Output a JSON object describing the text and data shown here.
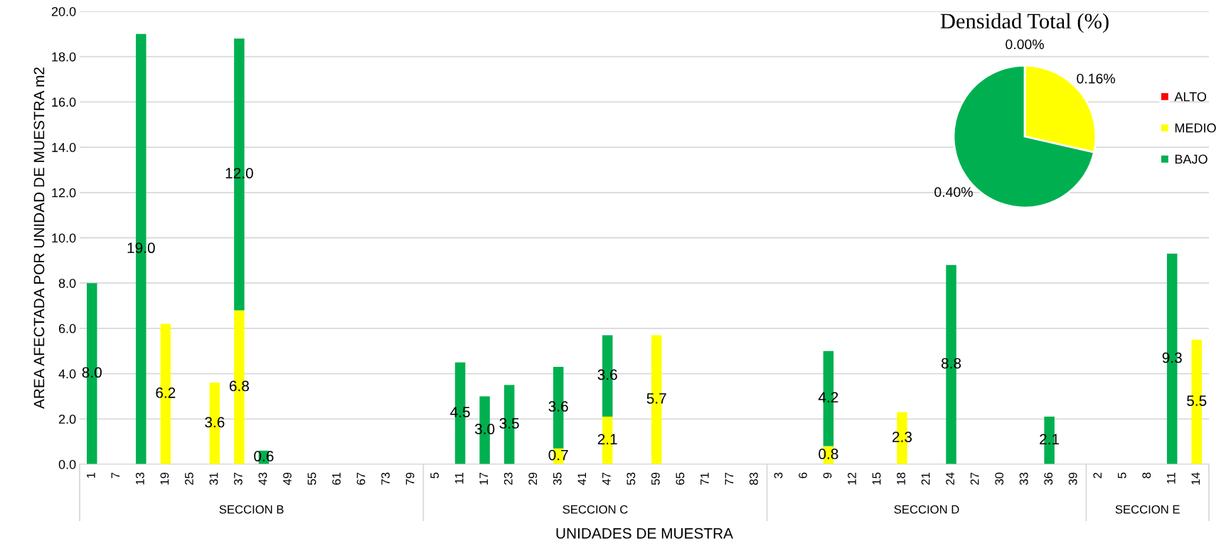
{
  "chart_data": [
    {
      "type": "bar",
      "stacked": true,
      "xlabel": "UNIDADES DE MUESTRA",
      "ylabel": "AREA AFECTADA POR UNIDAD DE MUESTRA m2",
      "categories": [
        "1",
        "7",
        "13",
        "19",
        "25",
        "31",
        "37",
        "43",
        "49",
        "55",
        "61",
        "67",
        "73",
        "79",
        "5",
        "11",
        "17",
        "23",
        "29",
        "35",
        "41",
        "47",
        "53",
        "59",
        "65",
        "71",
        "77",
        "83",
        "3",
        "6",
        "9",
        "12",
        "15",
        "18",
        "21",
        "24",
        "27",
        "30",
        "33",
        "36",
        "39",
        "2",
        "5",
        "8",
        "11",
        "14"
      ],
      "series": [
        {
          "color": "#ffff00",
          "values": [
            null,
            null,
            null,
            6.2,
            null,
            3.6,
            6.8,
            null,
            null,
            null,
            null,
            null,
            null,
            null,
            null,
            null,
            null,
            null,
            null,
            0.7,
            null,
            2.1,
            null,
            5.7,
            null,
            null,
            null,
            null,
            null,
            null,
            0.8,
            null,
            null,
            2.3,
            null,
            null,
            null,
            null,
            null,
            null,
            null,
            null,
            null,
            null,
            null,
            5.5
          ],
          "value_labels": [
            null,
            null,
            null,
            "6.2",
            null,
            "3.6",
            "6.8",
            null,
            null,
            null,
            null,
            null,
            null,
            null,
            null,
            null,
            null,
            null,
            null,
            "0.7",
            null,
            "2.1",
            null,
            "5.7",
            null,
            null,
            null,
            null,
            null,
            null,
            "0.8",
            null,
            null,
            "2.3",
            null,
            null,
            null,
            null,
            null,
            null,
            null,
            null,
            null,
            null,
            null,
            "5.5"
          ]
        },
        {
          "color": "#00b050",
          "values": [
            8.0,
            null,
            19.0,
            null,
            null,
            null,
            12.0,
            0.6,
            null,
            null,
            null,
            null,
            null,
            null,
            null,
            4.5,
            3.0,
            3.5,
            null,
            3.6,
            null,
            3.6,
            null,
            null,
            null,
            null,
            null,
            null,
            null,
            null,
            4.2,
            null,
            null,
            null,
            null,
            8.8,
            null,
            null,
            null,
            2.1,
            null,
            null,
            null,
            null,
            9.3,
            null
          ],
          "value_labels": [
            "8.0",
            null,
            "19.0",
            null,
            null,
            null,
            "12.0",
            "0.6",
            null,
            null,
            null,
            null,
            null,
            null,
            null,
            "4.5",
            "3.0",
            "3.5",
            null,
            "3.6",
            null,
            "3.6",
            null,
            null,
            null,
            null,
            null,
            null,
            null,
            null,
            "4.2",
            null,
            null,
            null,
            null,
            "8.8",
            null,
            null,
            null,
            "2.1",
            null,
            null,
            null,
            null,
            "9.3",
            null
          ]
        }
      ],
      "grid": "y",
      "ylim": [
        0,
        20
      ],
      "yticks": [
        {
          "value": 0,
          "label": "0.0"
        },
        {
          "value": 2,
          "label": "2.0"
        },
        {
          "value": 4,
          "label": "4.0"
        },
        {
          "value": 6,
          "label": "6.0"
        },
        {
          "value": 8,
          "label": "8.0"
        },
        {
          "value": 10,
          "label": "10.0"
        },
        {
          "value": 12,
          "label": "12.0"
        },
        {
          "value": 14,
          "label": "14.0"
        },
        {
          "value": 16,
          "label": "16.0"
        },
        {
          "value": 18,
          "label": "18.0"
        },
        {
          "value": 20,
          "label": "20.0"
        }
      ],
      "annotations": [
        "SECCION B",
        "SECCION C",
        "SECCION D",
        "SECCION E"
      ]
    },
    {
      "type": "pie",
      "title": "Densidad Total (%)",
      "categories": [
        "ALTO",
        "MEDIO",
        "BAJO"
      ],
      "values": [
        0.0,
        0.16,
        0.4
      ],
      "colors": [
        "#ff0000",
        "#ffff00",
        "#00b050"
      ],
      "value_labels": [
        "0.00%",
        "0.16%",
        "0.40%"
      ],
      "legend": "right"
    }
  ]
}
